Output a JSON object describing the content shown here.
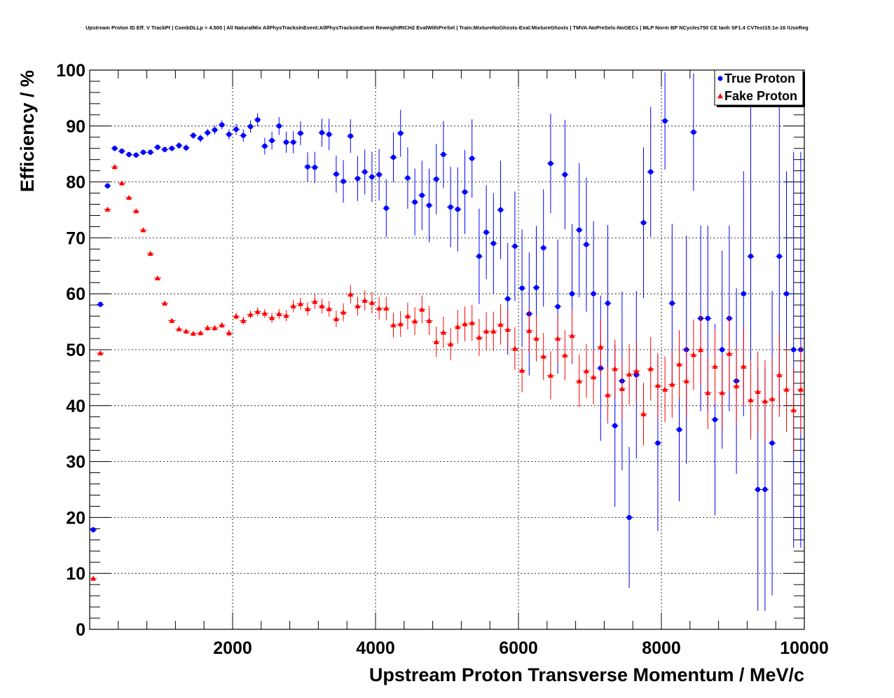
{
  "chart_data": {
    "type": "scatter",
    "title": "Upstream Proton ID Eff. V TrackPt | CombDLLp > 4.500 | All NaturalMix AllPhysTracksInEvent:AllPhysTracksInEvent ReweightRICH2 EvalWithPreSel | Train:MixtureNoGhosts-Eval:MixtureGhosts | TMVA-NoPreSels-NoGECs | MLP Norm BP NCycles750 CE tanh SF1.4 CVTest15:1e-16 !UseReg",
    "xlabel": "Upstream Proton Transverse Momentum / MeV/c",
    "ylabel": "Efficiency / %",
    "xlim": [
      0,
      10000
    ],
    "ylim": [
      0,
      100
    ],
    "xticks": [
      2000,
      4000,
      6000,
      8000,
      10000
    ],
    "yticks": [
      0,
      10,
      20,
      30,
      40,
      50,
      60,
      70,
      80,
      90,
      100
    ],
    "grid": true,
    "legend_position": "top-right",
    "series": [
      {
        "name": "True Proton",
        "color": "#0000ff",
        "marker": "circle",
        "points": [
          [
            50,
            17.8,
            0.5
          ],
          [
            150,
            58.1,
            0.5
          ],
          [
            250,
            79.3,
            0.5
          ],
          [
            350,
            86.0,
            0.5
          ],
          [
            450,
            85.5,
            0.5
          ],
          [
            550,
            84.9,
            0.5
          ],
          [
            650,
            84.8,
            0.5
          ],
          [
            750,
            85.3,
            0.5
          ],
          [
            850,
            85.3,
            0.5
          ],
          [
            950,
            86.2,
            0.5
          ],
          [
            1050,
            85.8,
            0.5
          ],
          [
            1150,
            86.0,
            0.5
          ],
          [
            1250,
            86.5,
            0.6
          ],
          [
            1350,
            86.1,
            0.6
          ],
          [
            1450,
            88.3,
            0.6
          ],
          [
            1550,
            87.8,
            0.7
          ],
          [
            1650,
            88.8,
            0.7
          ],
          [
            1750,
            89.3,
            0.8
          ],
          [
            1850,
            90.2,
            0.8
          ],
          [
            1950,
            88.5,
            0.9
          ],
          [
            2050,
            89.4,
            1.0
          ],
          [
            2150,
            88.3,
            1.1
          ],
          [
            2250,
            89.9,
            1.1
          ],
          [
            2350,
            91.1,
            1.2
          ],
          [
            2450,
            86.4,
            1.5
          ],
          [
            2550,
            87.4,
            1.6
          ],
          [
            2650,
            90.0,
            1.6
          ],
          [
            2750,
            87.1,
            1.9
          ],
          [
            2850,
            87.1,
            2.0
          ],
          [
            2950,
            88.7,
            2.1
          ],
          [
            3050,
            82.7,
            2.6
          ],
          [
            3150,
            82.6,
            2.8
          ],
          [
            3250,
            88.8,
            2.5
          ],
          [
            3350,
            88.5,
            2.8
          ],
          [
            3450,
            81.4,
            3.3
          ],
          [
            3550,
            80.1,
            3.8
          ],
          [
            3650,
            88.2,
            3.0
          ],
          [
            3750,
            80.6,
            4.0
          ],
          [
            3850,
            81.8,
            4.0
          ],
          [
            3950,
            80.9,
            4.5
          ],
          [
            4050,
            81.3,
            4.6
          ],
          [
            4150,
            75.3,
            5.2
          ],
          [
            4250,
            84.4,
            4.5
          ],
          [
            4350,
            88.7,
            4.2
          ],
          [
            4450,
            80.7,
            5.5
          ],
          [
            4550,
            76.4,
            6.0
          ],
          [
            4650,
            77.6,
            6.2
          ],
          [
            4750,
            75.8,
            6.6
          ],
          [
            4850,
            80.5,
            6.3
          ],
          [
            4950,
            84.9,
            6.0
          ],
          [
            5050,
            75.5,
            7.2
          ],
          [
            5150,
            75.1,
            7.5
          ],
          [
            5250,
            78.2,
            7.5
          ],
          [
            5350,
            84.2,
            7.0
          ],
          [
            5450,
            66.7,
            8.5
          ],
          [
            5550,
            71.0,
            8.4
          ],
          [
            5650,
            69.0,
            9.0
          ],
          [
            5750,
            75.0,
            8.8
          ],
          [
            5850,
            59.1,
            10.0
          ],
          [
            5950,
            68.5,
            9.8
          ],
          [
            6050,
            61.0,
            10.5
          ],
          [
            6150,
            56.4,
            11.0
          ],
          [
            6250,
            61.1,
            11.0
          ],
          [
            6350,
            68.2,
            10.5
          ],
          [
            6450,
            83.3,
            8.9
          ],
          [
            6550,
            57.7,
            12.0
          ],
          [
            6650,
            81.3,
            9.8
          ],
          [
            6750,
            60.0,
            12.5
          ],
          [
            6850,
            71.4,
            12.0
          ],
          [
            6950,
            68.8,
            12.0
          ],
          [
            7050,
            60.0,
            13.0
          ],
          [
            7150,
            46.7,
            13.0
          ],
          [
            7250,
            58.3,
            14.0
          ],
          [
            7350,
            36.4,
            14.5
          ],
          [
            7450,
            44.4,
            16.0
          ],
          [
            7550,
            20.0,
            12.6
          ],
          [
            7650,
            45.5,
            15.0
          ],
          [
            7750,
            72.7,
            13.5
          ],
          [
            7850,
            81.8,
            11.6
          ],
          [
            7950,
            33.3,
            15.7
          ],
          [
            8050,
            90.9,
            8.7
          ],
          [
            8150,
            58.3,
            14.2
          ],
          [
            8250,
            35.7,
            12.8
          ],
          [
            8350,
            50.0,
            20.4
          ],
          [
            8450,
            88.9,
            10.5
          ],
          [
            8550,
            55.6,
            16.6
          ],
          [
            8650,
            55.6,
            16.6
          ],
          [
            8750,
            37.5,
            17.1
          ],
          [
            8850,
            50.0,
            17.7
          ],
          [
            8950,
            55.6,
            16.6
          ],
          [
            9050,
            44.4,
            16.6
          ],
          [
            9150,
            60.0,
            21.9
          ],
          [
            9250,
            66.7,
            27.2
          ],
          [
            9350,
            25.0,
            21.7
          ],
          [
            9450,
            25.0,
            21.7
          ],
          [
            9550,
            33.3,
            27.2
          ],
          [
            9650,
            66.7,
            27.2
          ],
          [
            9750,
            60.0,
            21.9
          ],
          [
            9850,
            50.0,
            35.4
          ],
          [
            9950,
            50.0,
            35.4
          ]
        ]
      },
      {
        "name": "Fake Proton",
        "color": "#ff0000",
        "marker": "triangle",
        "points": [
          [
            50,
            9.1,
            0.2
          ],
          [
            150,
            49.4,
            0.3
          ],
          [
            250,
            75.1,
            0.3
          ],
          [
            350,
            82.7,
            0.3
          ],
          [
            450,
            79.8,
            0.3
          ],
          [
            550,
            77.2,
            0.3
          ],
          [
            650,
            74.8,
            0.3
          ],
          [
            750,
            71.4,
            0.3
          ],
          [
            850,
            67.2,
            0.3
          ],
          [
            950,
            62.8,
            0.3
          ],
          [
            1050,
            58.3,
            0.3
          ],
          [
            1150,
            55.2,
            0.3
          ],
          [
            1250,
            53.7,
            0.3
          ],
          [
            1350,
            53.3,
            0.4
          ],
          [
            1450,
            52.9,
            0.4
          ],
          [
            1550,
            53.0,
            0.4
          ],
          [
            1650,
            53.9,
            0.5
          ],
          [
            1750,
            53.9,
            0.5
          ],
          [
            1850,
            54.4,
            0.5
          ],
          [
            1950,
            53.0,
            0.6
          ],
          [
            2050,
            56.0,
            0.6
          ],
          [
            2150,
            55.2,
            0.7
          ],
          [
            2250,
            56.3,
            0.7
          ],
          [
            2350,
            56.8,
            0.8
          ],
          [
            2450,
            56.5,
            0.8
          ],
          [
            2550,
            55.7,
            0.9
          ],
          [
            2650,
            56.4,
            0.9
          ],
          [
            2750,
            56.1,
            1.0
          ],
          [
            2850,
            57.8,
            1.1
          ],
          [
            2950,
            58.2,
            1.1
          ],
          [
            3050,
            57.3,
            1.2
          ],
          [
            3150,
            58.6,
            1.3
          ],
          [
            3250,
            57.8,
            1.3
          ],
          [
            3350,
            57.3,
            1.4
          ],
          [
            3450,
            55.5,
            1.5
          ],
          [
            3550,
            56.7,
            1.6
          ],
          [
            3650,
            59.9,
            1.7
          ],
          [
            3750,
            57.8,
            1.7
          ],
          [
            3850,
            58.8,
            1.8
          ],
          [
            3950,
            58.4,
            1.9
          ],
          [
            4050,
            57.4,
            2.0
          ],
          [
            4150,
            57.4,
            2.1
          ],
          [
            4250,
            54.4,
            2.2
          ],
          [
            4350,
            54.6,
            2.3
          ],
          [
            4450,
            56.0,
            2.4
          ],
          [
            4550,
            55.1,
            2.5
          ],
          [
            4650,
            57.2,
            2.5
          ],
          [
            4750,
            55.2,
            2.6
          ],
          [
            4850,
            51.4,
            2.7
          ],
          [
            4950,
            53.1,
            2.8
          ],
          [
            5050,
            51.0,
            2.9
          ],
          [
            5150,
            54.1,
            3.0
          ],
          [
            5250,
            54.6,
            3.1
          ],
          [
            5350,
            54.8,
            3.2
          ],
          [
            5450,
            52.2,
            3.3
          ],
          [
            5550,
            53.3,
            3.4
          ],
          [
            5650,
            53.3,
            3.5
          ],
          [
            5750,
            54.5,
            3.6
          ],
          [
            5850,
            53.6,
            3.7
          ],
          [
            5950,
            50.2,
            3.8
          ],
          [
            6050,
            46.3,
            3.9
          ],
          [
            6150,
            53.4,
            4.0
          ],
          [
            6250,
            52.0,
            4.1
          ],
          [
            6350,
            48.8,
            4.2
          ],
          [
            6450,
            45.4,
            4.3
          ],
          [
            6550,
            52.0,
            4.4
          ],
          [
            6650,
            49.0,
            4.5
          ],
          [
            6750,
            52.5,
            4.6
          ],
          [
            6850,
            44.4,
            4.7
          ],
          [
            6950,
            46.2,
            4.8
          ],
          [
            7050,
            45.1,
            4.9
          ],
          [
            7150,
            50.5,
            5.0
          ],
          [
            7250,
            41.9,
            5.1
          ],
          [
            7350,
            46.6,
            5.2
          ],
          [
            7450,
            43.0,
            5.3
          ],
          [
            7550,
            45.6,
            5.4
          ],
          [
            7650,
            46.2,
            5.5
          ],
          [
            7750,
            38.5,
            5.6
          ],
          [
            7850,
            46.6,
            5.7
          ],
          [
            7950,
            43.6,
            5.8
          ],
          [
            8050,
            42.9,
            5.9
          ],
          [
            8150,
            43.8,
            6.0
          ],
          [
            8250,
            47.4,
            6.1
          ],
          [
            8350,
            44.4,
            6.2
          ],
          [
            8450,
            49.1,
            6.3
          ],
          [
            8550,
            50.0,
            6.4
          ],
          [
            8650,
            42.3,
            6.5
          ],
          [
            8750,
            47.0,
            6.6
          ],
          [
            8850,
            42.3,
            6.7
          ],
          [
            8950,
            49.3,
            6.8
          ],
          [
            9050,
            43.5,
            6.9
          ],
          [
            9150,
            47.0,
            7.0
          ],
          [
            9250,
            41.0,
            7.1
          ],
          [
            9350,
            42.5,
            7.2
          ],
          [
            9450,
            40.8,
            7.3
          ],
          [
            9550,
            41.2,
            7.4
          ],
          [
            9650,
            45.5,
            7.5
          ],
          [
            9750,
            42.9,
            7.6
          ],
          [
            9850,
            39.2,
            7.7
          ],
          [
            9950,
            42.9,
            7.8
          ]
        ]
      }
    ]
  }
}
